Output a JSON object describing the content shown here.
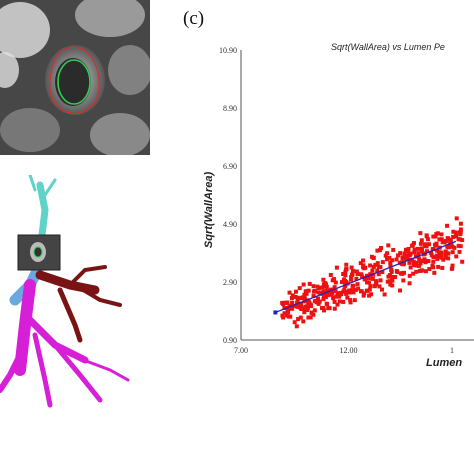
{
  "panel_label": "(c)",
  "images": {
    "ct_slice": "grayscale CT cross-section with segmented airway lumen (green) and wall (red) contours",
    "airway_tree": "3D airway tree rendering in cyan, magenta and dark red branches with inset CT slice"
  },
  "colors": {
    "points": "#ee1111",
    "fit_line": "#2222bb",
    "wall_contour": "#d23030",
    "lumen_contour": "#33cc55"
  },
  "chart_data": {
    "type": "scatter",
    "title": "Sqrt(WallArea) vs Lumen Pe",
    "xlabel": "Lumen",
    "ylabel": "Sqrt(WallArea)",
    "xlim": [
      7.0,
      17.0
    ],
    "ylim": [
      0.9,
      10.9
    ],
    "x_ticks": [
      "7.00",
      "12.00",
      "1"
    ],
    "y_ticks": [
      "0.90",
      "2.90",
      "4.90",
      "6.90",
      "8.90",
      "10.90"
    ],
    "fit_line": {
      "x": [
        8.6,
        17.0
      ],
      "y": [
        1.85,
        4.3
      ]
    },
    "point_cloud": {
      "description": "dense cloud of red square markers",
      "x_range": [
        8.6,
        17.0
      ],
      "y_spread": 0.55,
      "count": 420
    }
  }
}
